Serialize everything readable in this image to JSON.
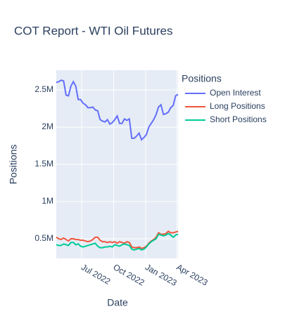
{
  "chart_data": {
    "type": "line",
    "title": "COT Report - WTI Oil Futures",
    "xlabel": "Date",
    "ylabel": "Positions",
    "legend_title": "Positions",
    "legend": "right",
    "grid": true,
    "x": [
      "2022-04-19",
      "2022-04-26",
      "2022-05-03",
      "2022-05-10",
      "2022-05-17",
      "2022-05-24",
      "2022-05-31",
      "2022-06-07",
      "2022-06-14",
      "2022-06-21",
      "2022-06-28",
      "2022-07-05",
      "2022-07-12",
      "2022-07-19",
      "2022-07-26",
      "2022-08-02",
      "2022-08-09",
      "2022-08-16",
      "2022-08-23",
      "2022-08-30",
      "2022-09-06",
      "2022-09-13",
      "2022-09-20",
      "2022-09-27",
      "2022-10-04",
      "2022-10-11",
      "2022-10-18",
      "2022-10-25",
      "2022-11-01",
      "2022-11-08",
      "2022-11-15",
      "2022-11-22",
      "2022-11-29",
      "2022-12-06",
      "2022-12-13",
      "2022-12-20",
      "2022-12-27",
      "2023-01-03",
      "2023-01-10",
      "2023-01-17",
      "2023-01-24",
      "2023-01-31",
      "2023-02-07",
      "2023-02-14",
      "2023-02-21",
      "2023-02-28",
      "2023-03-07",
      "2023-03-14",
      "2023-03-21",
      "2023-03-28",
      "2023-04-04"
    ],
    "series": [
      {
        "name": "Open Interest",
        "color": "#636efa",
        "values": [
          2600000,
          2610000,
          2630000,
          2620000,
          2430000,
          2420000,
          2550000,
          2610000,
          2550000,
          2370000,
          2370000,
          2320000,
          2300000,
          2260000,
          2260000,
          2270000,
          2230000,
          2220000,
          2100000,
          2080000,
          2070000,
          2100000,
          2040000,
          2060000,
          2100000,
          2150000,
          2050000,
          2050000,
          2110000,
          2090000,
          2110000,
          1850000,
          1850000,
          1880000,
          1920000,
          1830000,
          1860000,
          1900000,
          2000000,
          2050000,
          2100000,
          2170000,
          2270000,
          2300000,
          2170000,
          2180000,
          2200000,
          2260000,
          2290000,
          2420000,
          2440000
        ]
      },
      {
        "name": "Long Positions",
        "color": "#ef553b",
        "values": [
          520000,
          500000,
          490000,
          510000,
          490000,
          470000,
          500000,
          500000,
          490000,
          490000,
          480000,
          480000,
          470000,
          460000,
          470000,
          490000,
          520000,
          520000,
          480000,
          460000,
          460000,
          450000,
          460000,
          450000,
          460000,
          440000,
          460000,
          450000,
          440000,
          460000,
          450000,
          390000,
          380000,
          380000,
          390000,
          370000,
          380000,
          400000,
          440000,
          470000,
          490000,
          520000,
          580000,
          560000,
          560000,
          570000,
          600000,
          580000,
          580000,
          590000,
          600000
        ]
      },
      {
        "name": "Short Positions",
        "color": "#00cc96",
        "values": [
          420000,
          410000,
          410000,
          430000,
          420000,
          410000,
          450000,
          450000,
          420000,
          430000,
          400000,
          390000,
          400000,
          410000,
          420000,
          430000,
          440000,
          400000,
          380000,
          380000,
          390000,
          390000,
          400000,
          390000,
          420000,
          410000,
          400000,
          420000,
          430000,
          420000,
          410000,
          360000,
          350000,
          360000,
          370000,
          350000,
          360000,
          390000,
          430000,
          460000,
          480000,
          500000,
          560000,
          550000,
          540000,
          550000,
          570000,
          550000,
          520000,
          550000,
          560000
        ]
      }
    ],
    "xlim": [
      "2022-04-19",
      "2023-04-04"
    ],
    "xticks": [
      {
        "value": "2022-07-01",
        "label": "Jul 2022"
      },
      {
        "value": "2022-10-01",
        "label": "Oct 2022"
      },
      {
        "value": "2023-01-01",
        "label": "Jan 2023"
      },
      {
        "value": "2023-04-01",
        "label": "Apr 2023"
      }
    ],
    "ylim": [
      236000,
      2764000
    ],
    "yticks": [
      {
        "value": 500000,
        "label": "0.5M"
      },
      {
        "value": 1000000,
        "label": "1M"
      },
      {
        "value": 1500000,
        "label": "1.5M"
      },
      {
        "value": 2000000,
        "label": "2M"
      },
      {
        "value": 2500000,
        "label": "2.5M"
      }
    ]
  }
}
